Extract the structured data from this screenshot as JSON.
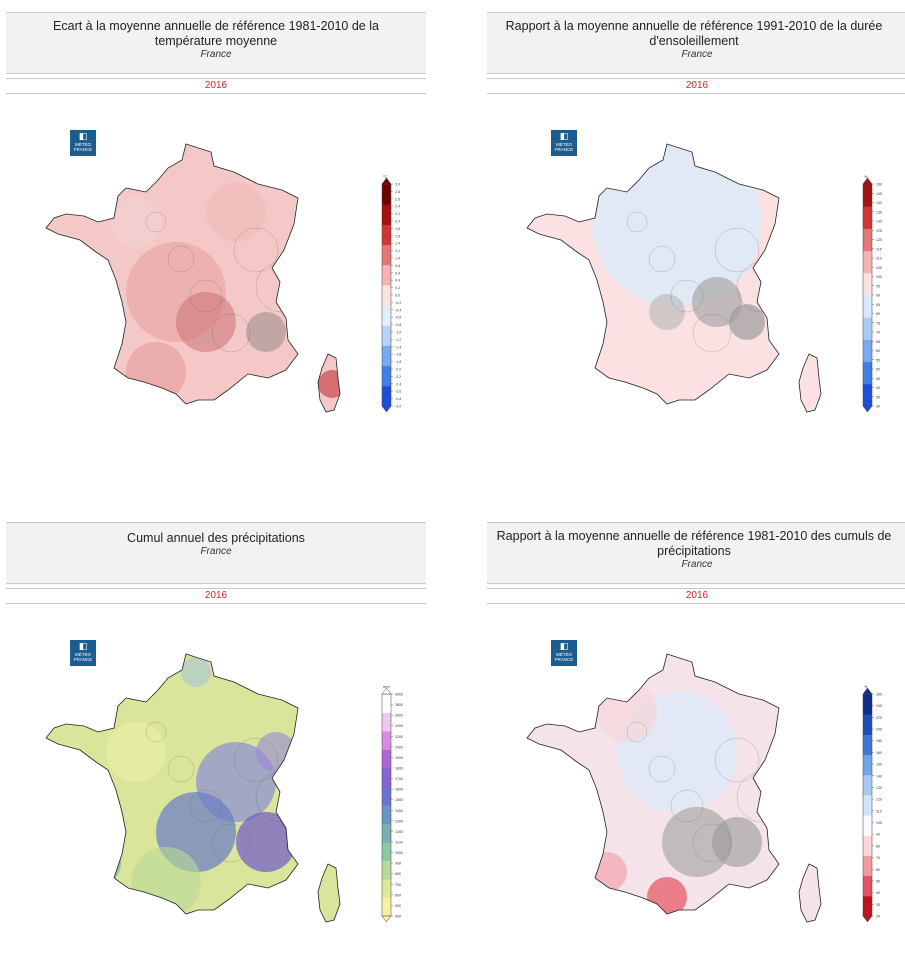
{
  "panels": [
    {
      "title": "Ecart à la moyenne annuelle de référence 1981-2010 de la température moyenne",
      "title_line1": "Ecart à la moyenne annuelle de référence 1981-2010 de la",
      "title_line2": "température moyenne",
      "subtitle": "France",
      "year": "2016",
      "unit": "°C",
      "colors": [
        "#1f4fd8",
        "#3f7fe6",
        "#79aaf0",
        "#b7d4f7",
        "#e4eefb",
        "#fbe3e3",
        "#f4b4b4",
        "#e77676",
        "#d13636",
        "#a51010",
        "#6e0000"
      ],
      "ticks": [
        "3.0",
        "2.8",
        "2.6",
        "2.4",
        "2.2",
        "2.0",
        "1.8",
        "1.6",
        "1.4",
        "1.2",
        "1.0",
        "0.8",
        "0.6",
        "0.4",
        "0.2",
        "0.0",
        "-0.2",
        "-0.4",
        "-0.6",
        "-0.8",
        "-1.0",
        "-1.2",
        "-1.4",
        "-1.6",
        "-1.8",
        "-2.0",
        "-2.2",
        "-2.4",
        "-2.6",
        "-2.8",
        "-3.0"
      ],
      "map_fill": "#f5c8c8"
    },
    {
      "title": "Rapport à la moyenne annuelle de référence 1991-2010 de la durée d'ensoleillement",
      "title_line1": "Rapport à la moyenne annuelle de référence 1991-2010 de la durée",
      "title_line2": "d'ensoleillement",
      "subtitle": "France",
      "year": "2016",
      "unit": "%",
      "colors": [
        "#1f4fd8",
        "#3f7fe6",
        "#79aaf0",
        "#a9cbf4",
        "#d8e7fa",
        "#fbe3e3",
        "#f4b4b4",
        "#e77676",
        "#d13636",
        "#a51010"
      ],
      "ticks": [
        "150",
        "145",
        "140",
        "135",
        "130",
        "125",
        "120",
        "115",
        "110",
        "105",
        "100",
        "95",
        "90",
        "85",
        "80",
        "75",
        "70",
        "65",
        "60",
        "55",
        "50",
        "45",
        "40",
        "35",
        "30"
      ],
      "map_fill": "#fbe1e1"
    },
    {
      "title": "Cumul annuel des précipitations",
      "title_line1": "Cumul annuel des précipitations",
      "title_line2": "",
      "subtitle": "France",
      "year": "2016",
      "unit": "mm",
      "colors": [
        "#f7f3a6",
        "#dfe89a",
        "#b9d99a",
        "#8fc7a3",
        "#76b0b4",
        "#6a93c6",
        "#6c74cf",
        "#8a63d2",
        "#b065d4",
        "#d78ce0",
        "#f1c6f0",
        "#ffffff"
      ],
      "ticks": [
        "3000",
        "2800",
        "2600",
        "2400",
        "2200",
        "2000",
        "1900",
        "1800",
        "1700",
        "1600",
        "1500",
        "1400",
        "1300",
        "1200",
        "1100",
        "1000",
        "900",
        "800",
        "700",
        "600",
        "500",
        "400"
      ],
      "map_fill": "#d8e59a"
    },
    {
      "title": "Rapport à la moyenne annuelle de référence 1981-2010 des cumuls de précipitations",
      "title_line1": "Rapport à la moyenne annuelle de référence 1981-2010 des cumuls de",
      "title_line2": "précipitations",
      "subtitle": "France",
      "year": "2016",
      "unit": "%",
      "colors": [
        "#c0141e",
        "#e45360",
        "#f39aa1",
        "#fbd5d8",
        "#f7fbff",
        "#d2e5f8",
        "#a6caf1",
        "#6ea6e6",
        "#3d78d6",
        "#1e4fb8",
        "#0e2f8a"
      ],
      "ticks": [
        "260",
        "240",
        "220",
        "200",
        "180",
        "160",
        "150",
        "140",
        "130",
        "120",
        "110",
        "100",
        "90",
        "80",
        "70",
        "60",
        "50",
        "40",
        "30",
        "20"
      ],
      "map_fill": "#f4e4ea"
    }
  ],
  "logo": {
    "line1": "MÉTÉO",
    "line2": "FRANCE"
  }
}
